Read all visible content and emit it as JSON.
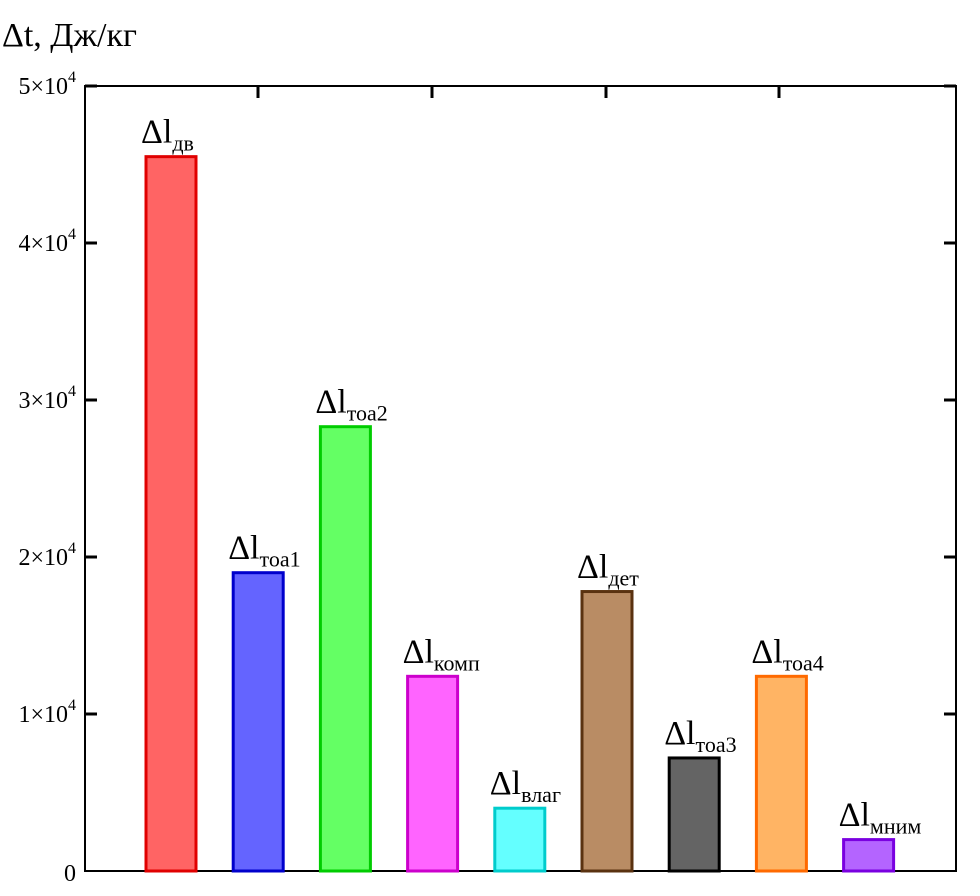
{
  "chart_data": {
    "type": "bar",
    "ylabel": "Δt, Дж/кг",
    "ylim": [
      0,
      50000
    ],
    "yticks": [
      {
        "value": 0,
        "label": "0",
        "exp": ""
      },
      {
        "value": 10000,
        "label": "1×10",
        "exp": "4"
      },
      {
        "value": 20000,
        "label": "2×10",
        "exp": "4"
      },
      {
        "value": 30000,
        "label": "3×10",
        "exp": "4"
      },
      {
        "value": 40000,
        "label": "4×10",
        "exp": "4"
      },
      {
        "value": 50000,
        "label": "5×10",
        "exp": "4"
      }
    ],
    "grid": false,
    "bars": [
      {
        "label": "Δl",
        "sub": "дв",
        "value": 45500,
        "fill": "#ff6464",
        "stroke": "#e00000"
      },
      {
        "label": "Δl",
        "sub": "тоа1",
        "value": 19000,
        "fill": "#6464ff",
        "stroke": "#0000cc"
      },
      {
        "label": "Δl",
        "sub": "тоа2",
        "value": 28300,
        "fill": "#64ff64",
        "stroke": "#00cc00"
      },
      {
        "label": "Δl",
        "sub": "комп",
        "value": 12400,
        "fill": "#ff64ff",
        "stroke": "#cc00cc"
      },
      {
        "label": "Δl",
        "sub": "влаг",
        "value": 4000,
        "fill": "#64ffff",
        "stroke": "#00cccc"
      },
      {
        "label": "Δl",
        "sub": "дет",
        "value": 17800,
        "fill": "#b98c64",
        "stroke": "#5a3210"
      },
      {
        "label": "Δl",
        "sub": "тоа3",
        "value": 7200,
        "fill": "#646464",
        "stroke": "#000000"
      },
      {
        "label": "Δl",
        "sub": "тоа4",
        "value": 12400,
        "fill": "#ffb464",
        "stroke": "#ff6a00"
      },
      {
        "label": "Δl",
        "sub": "мним",
        "value": 2000,
        "fill": "#b464ff",
        "stroke": "#7a00e0"
      }
    ]
  }
}
